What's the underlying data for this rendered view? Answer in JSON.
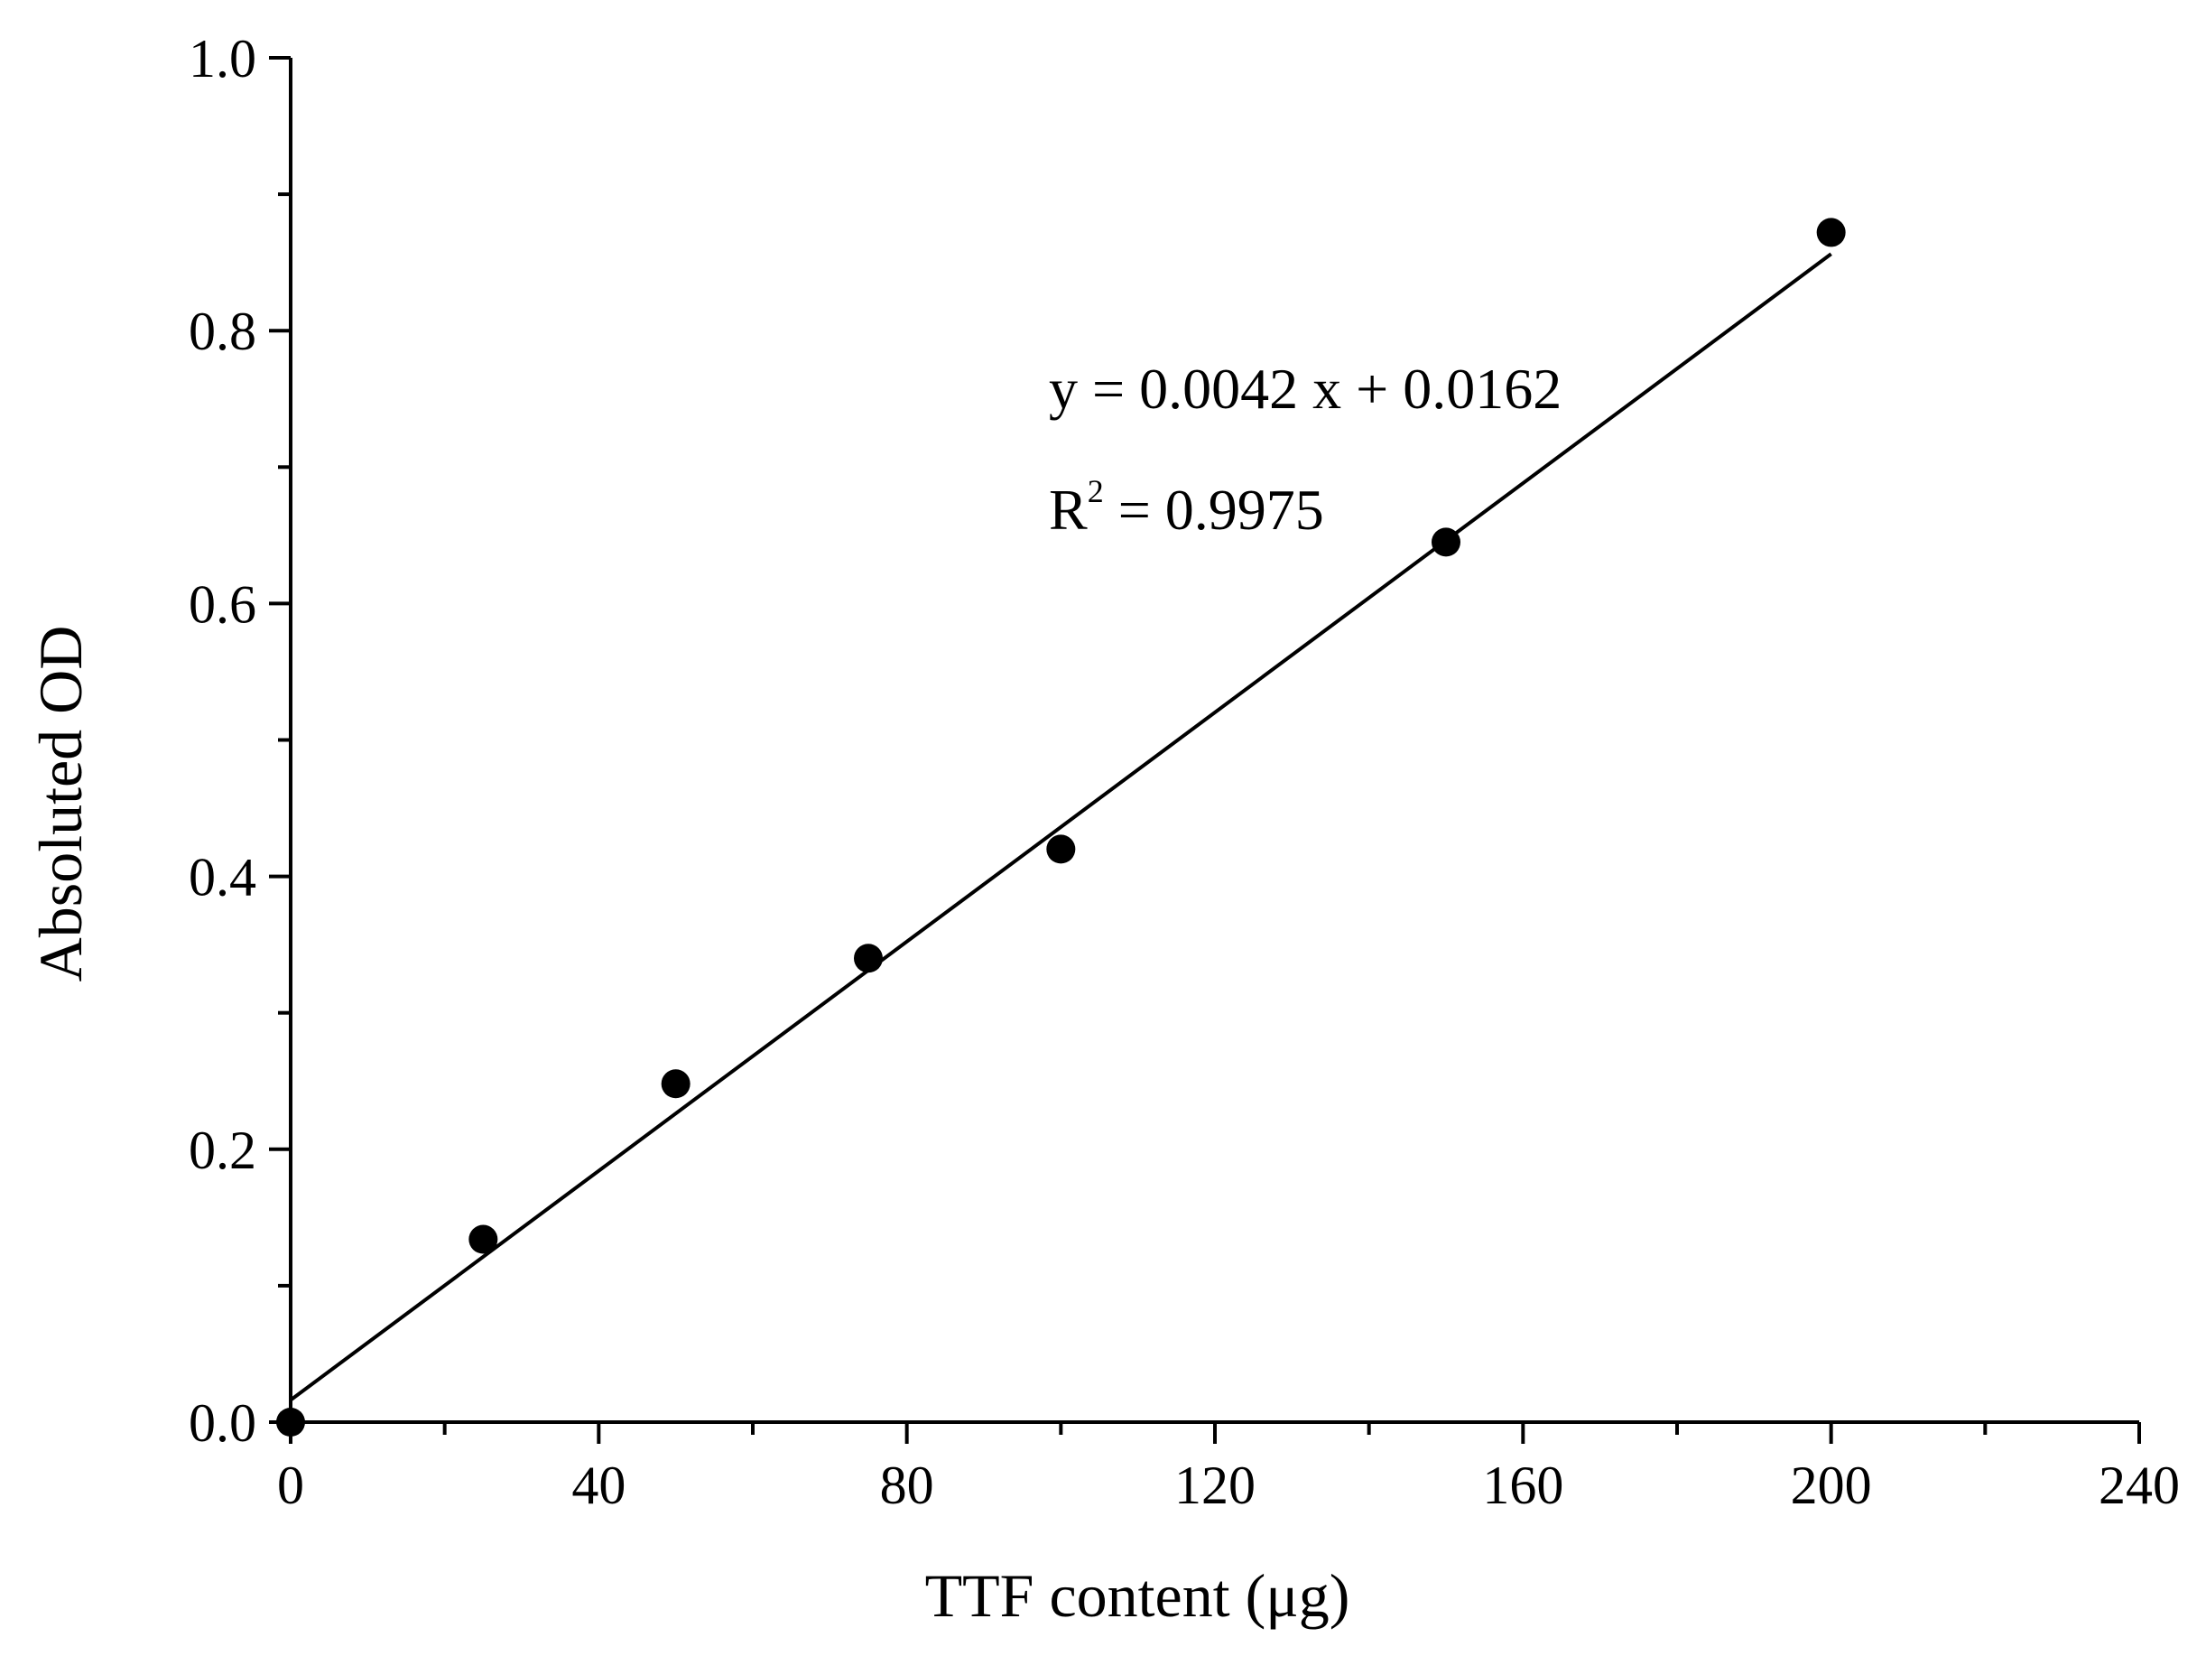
{
  "chart_data": {
    "type": "scatter",
    "title": "",
    "xlabel": "TTF content (μg)",
    "ylabel": "Absoluted OD",
    "xlim": [
      0,
      240
    ],
    "ylim": [
      0,
      1.0
    ],
    "x_ticks": [
      0,
      40,
      80,
      120,
      160,
      200,
      240
    ],
    "x_tick_labels": [
      "0",
      "40",
      "80",
      "120",
      "160",
      "200",
      "240"
    ],
    "y_ticks": [
      0.0,
      0.2,
      0.4,
      0.6,
      0.8,
      1.0
    ],
    "y_tick_labels": [
      "0.0",
      "0.2",
      "0.4",
      "0.6",
      "0.8",
      "1.0"
    ],
    "grid": false,
    "series": [
      {
        "x": [
          0,
          25,
          50,
          75,
          100,
          150,
          200
        ],
        "y": [
          0.0,
          0.134,
          0.248,
          0.34,
          0.42,
          0.645,
          0.872
        ],
        "color": "#000000",
        "marker": "filled-circle"
      }
    ],
    "fit_line": {
      "slope": 0.0042,
      "intercept": 0.0162,
      "x_range": [
        0,
        200
      ],
      "color": "#000000"
    },
    "annotations": {
      "equation": "y = 0.0042 x + 0.0162",
      "r2_prefix": "R",
      "r2_sup": "2",
      "r2_value": " = 0.9975"
    }
  }
}
